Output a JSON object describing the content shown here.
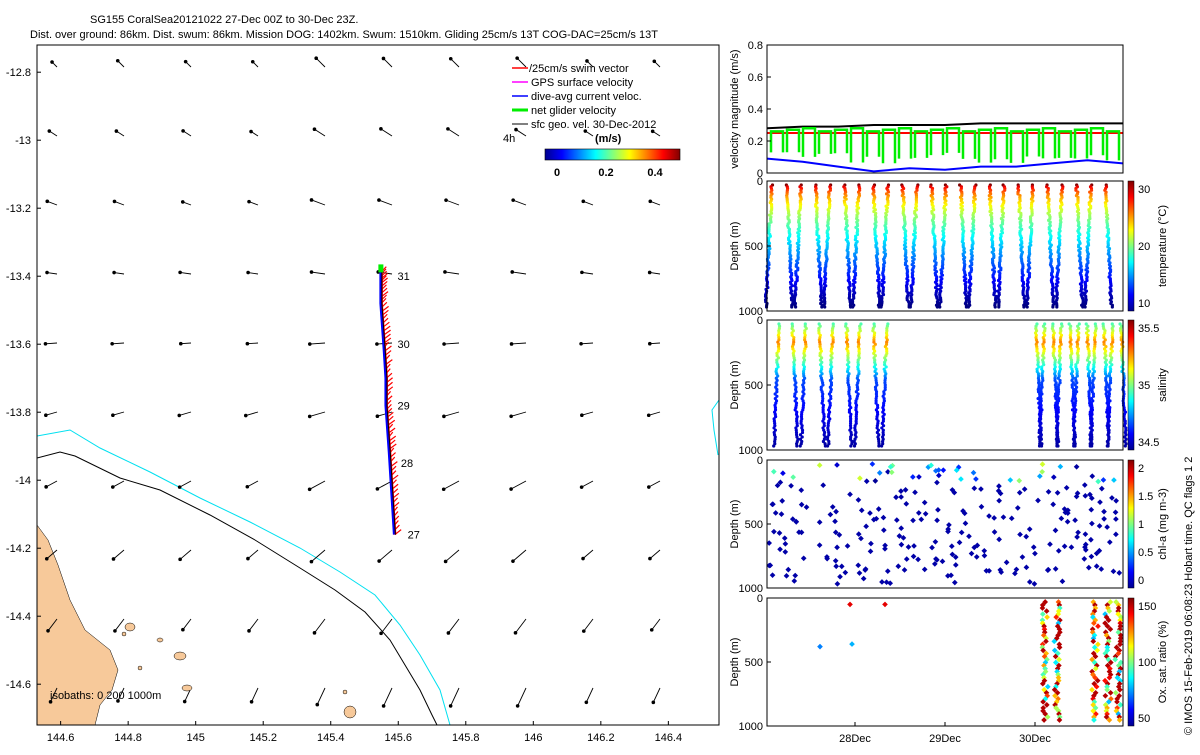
{
  "header": {
    "line1": "SG155 CoralSea20121022 27-Dec 00Z to 30-Dec 23Z.",
    "line2": "Dist. over ground: 86km. Dist. swum: 86km. Mission DOG: 1402km. Swum: 1510km. Gliding 25cm/s 13T COG-DAC=25cm/s 13T"
  },
  "credit": "© IMOS 15-Feb-2019 06:08:23 Hobart time. QC flags 1  2",
  "colors": {
    "land": "#f7c99a",
    "isobath_0": "#000000",
    "isobath_200": "#00e0f0",
    "swim": "#ff0000",
    "gps": "#ff00ff",
    "dac": "#0000ff",
    "net": "#00ee00",
    "sfc": "#000000"
  },
  "chart_data": [
    {
      "type": "scatter",
      "panel": "map",
      "x_ticks": [
        "144.6",
        "144.8",
        "145",
        "145.2",
        "145.4",
        "145.6",
        "145.8",
        "146",
        "146.2",
        "146.4"
      ],
      "y_ticks": [
        "-12.8",
        "-13",
        "-13.2",
        "-13.4",
        "-13.6",
        "-13.8",
        "-14",
        "-14.2",
        "-14.4",
        "-14.6"
      ],
      "xlim": [
        144.53,
        146.55
      ],
      "ylim": [
        -14.72,
        -12.72
      ],
      "legend": {
        "items": [
          "/25cm/s swim vector",
          "GPS surface velocity",
          "dive-avg current veloc.",
          "net glider velocity",
          "sfc geo. vel. 30-Dec-2012"
        ],
        "scale_label": "4h",
        "colorbar_title": "(m/s)",
        "colorbar_ticks": [
          "0",
          "0.2",
          "0.4"
        ]
      },
      "isobath_label": "isobaths: 0   200  1000m",
      "day_labels": [
        {
          "text": "31",
          "lon": 145.58,
          "lat": -13.4
        },
        {
          "text": "30",
          "lon": 145.58,
          "lat": -13.6
        },
        {
          "text": "29",
          "lon": 145.58,
          "lat": -13.78
        },
        {
          "text": "28",
          "lon": 145.59,
          "lat": -13.95
        },
        {
          "text": "27",
          "lon": 145.61,
          "lat": -14.16
        }
      ],
      "track": [
        [
          145.59,
          -14.16
        ],
        [
          145.585,
          -14.08
        ],
        [
          145.58,
          -14.0
        ],
        [
          145.575,
          -13.92
        ],
        [
          145.57,
          -13.85
        ],
        [
          145.565,
          -13.78
        ],
        [
          145.565,
          -13.7
        ],
        [
          145.56,
          -13.62
        ],
        [
          145.555,
          -13.55
        ],
        [
          145.55,
          -13.48
        ],
        [
          145.55,
          -13.42
        ],
        [
          145.55,
          -13.38
        ]
      ]
    },
    {
      "type": "line",
      "panel": "velocity",
      "ylabel": "velocity magnitude (m/s)",
      "ylim": [
        0,
        0.8
      ],
      "y_ticks": [
        "0",
        "0.2",
        "0.4",
        "0.6",
        "0.8"
      ],
      "series": [
        {
          "color": "#000000",
          "values": [
            0.28,
            0.29,
            0.29,
            0.3,
            0.3,
            0.3,
            0.31,
            0.31,
            0.31,
            0.31,
            0.31
          ]
        },
        {
          "color": "#ff0000",
          "values": [
            0.25,
            0.25,
            0.25,
            0.25,
            0.25,
            0.25,
            0.25,
            0.25,
            0.25,
            0.25,
            0.25
          ]
        },
        {
          "color": "#0000ff",
          "values": [
            0.09,
            0.07,
            0.04,
            0.01,
            0.03,
            0.02,
            0.04,
            0.04,
            0.06,
            0.08,
            0.06
          ]
        }
      ]
    },
    {
      "type": "scatter",
      "panel": "temperature",
      "ylabel": "Depth (m)",
      "clabel": "temperature (°C)",
      "ylim": [
        1000,
        0
      ],
      "y_ticks": [
        "0",
        "500",
        "1000"
      ],
      "colorbar_ticks": [
        "10",
        "20",
        "30"
      ],
      "profiles": 24,
      "max_depth": 990
    },
    {
      "type": "scatter",
      "panel": "salinity",
      "ylabel": "Depth (m)",
      "clabel": "salinity",
      "ylim": [
        1000,
        0
      ],
      "y_ticks": [
        "0",
        "500",
        "1000"
      ],
      "colorbar_ticks": [
        "34.5",
        "35",
        "35.5"
      ],
      "profiles": 20,
      "max_depth": 990
    },
    {
      "type": "scatter",
      "panel": "chla",
      "ylabel": "Depth (m)",
      "clabel": "chl-a (mg m-3)",
      "ylim": [
        1000,
        0
      ],
      "y_ticks": [
        "0",
        "500",
        "1000"
      ],
      "colorbar_ticks": [
        "0",
        "0.5",
        "1",
        "1.5",
        "2"
      ]
    },
    {
      "type": "scatter",
      "panel": "oxygen",
      "ylabel": "Depth (m)",
      "clabel": "Ox. sat. ratio (%)",
      "ylim": [
        1000,
        0
      ],
      "y_ticks": [
        "0",
        "500",
        "1000"
      ],
      "colorbar_ticks": [
        "50",
        "100",
        "150"
      ],
      "x_ticks": [
        "28Dec",
        "29Dec",
        "30Dec"
      ]
    }
  ]
}
